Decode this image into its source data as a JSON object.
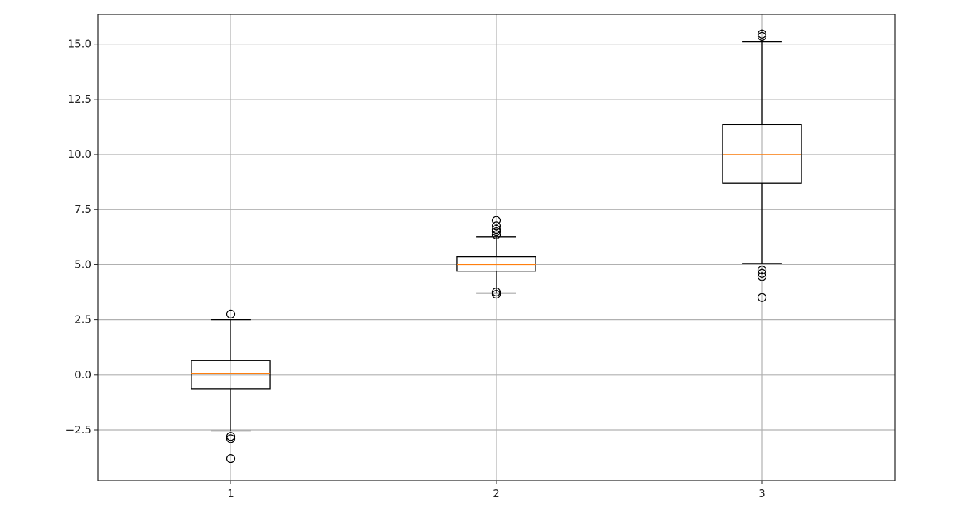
{
  "chart_data": {
    "type": "box",
    "categories": [
      "1",
      "2",
      "3"
    ],
    "boxes": [
      {
        "category": "1",
        "q1": -0.65,
        "median": 0.05,
        "q3": 0.65,
        "whisker_low": -2.55,
        "whisker_high": 2.5,
        "outliers": [
          2.75,
          -2.8,
          -2.9,
          -3.8
        ]
      },
      {
        "category": "2",
        "q1": 4.7,
        "median": 5.0,
        "q3": 5.35,
        "whisker_low": 3.7,
        "whisker_high": 6.25,
        "outliers": [
          7.0,
          6.75,
          6.6,
          6.5,
          6.35,
          3.75,
          3.65
        ]
      },
      {
        "category": "3",
        "q1": 8.7,
        "median": 10.0,
        "q3": 11.35,
        "whisker_low": 5.05,
        "whisker_high": 15.1,
        "outliers": [
          15.45,
          15.35,
          4.75,
          4.6,
          4.45,
          3.5
        ]
      }
    ],
    "y_ticks": [
      -2.5,
      0.0,
      2.5,
      5.0,
      7.5,
      10.0,
      12.5,
      15.0
    ],
    "y_tick_labels": [
      "−2.5",
      "0.0",
      "2.5",
      "5.0",
      "7.5",
      "10.0",
      "12.5",
      "15.0"
    ],
    "ylim": [
      -4.8,
      16.35
    ],
    "xlim": [
      0.5,
      3.5
    ],
    "grid": true,
    "title": "",
    "xlabel": "",
    "ylabel": "",
    "colors": {
      "box": "#000000",
      "median": "#ff7f0e",
      "grid": "#b0b0b0",
      "outlier": "#000000"
    }
  }
}
